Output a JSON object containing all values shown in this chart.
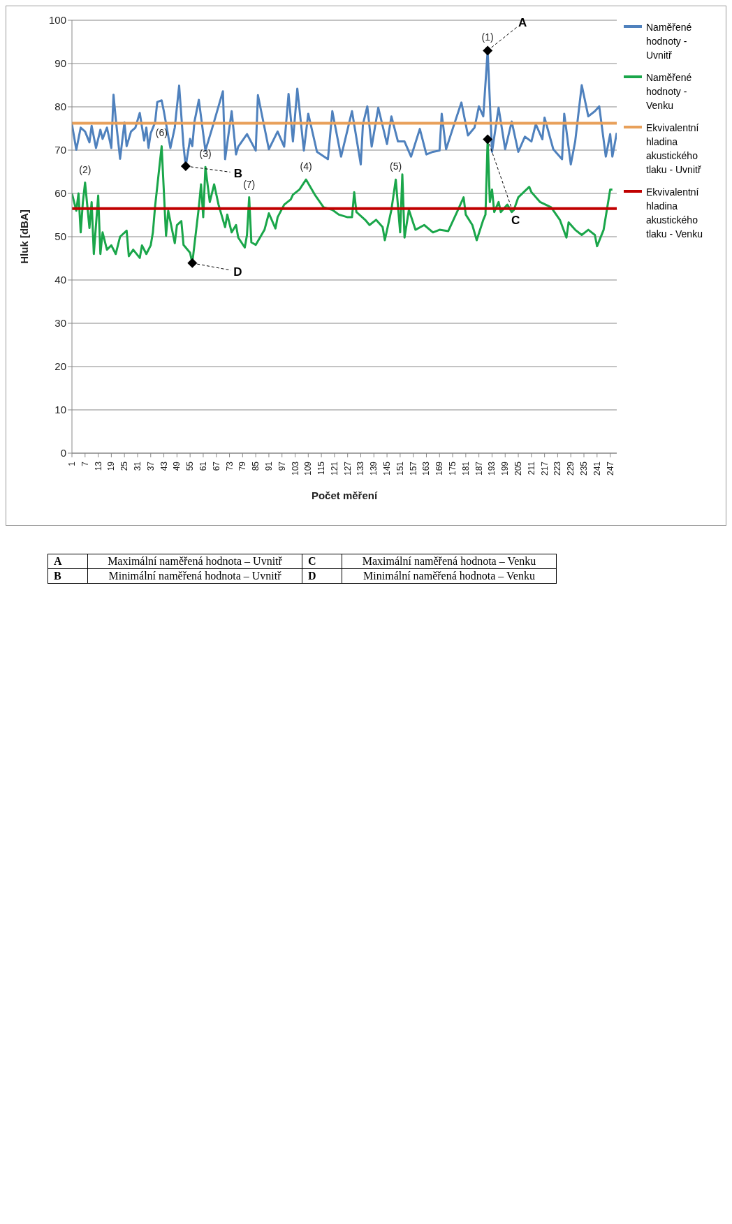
{
  "chart_data": {
    "type": "line",
    "xlabel": "Počet měření",
    "ylabel": "Hluk [dBA]",
    "xlim": [
      1,
      250
    ],
    "xticks": [
      1,
      7,
      13,
      19,
      25,
      31,
      37,
      43,
      49,
      55,
      61,
      67,
      73,
      79,
      85,
      91,
      97,
      103,
      109,
      115,
      121,
      127,
      133,
      139,
      145,
      151,
      157,
      163,
      169,
      175,
      181,
      187,
      193,
      199,
      205,
      211,
      217,
      223,
      229,
      235,
      241,
      247
    ],
    "ylim": [
      0,
      100
    ],
    "yticks": [
      0,
      10,
      20,
      30,
      40,
      50,
      60,
      70,
      80,
      90,
      100
    ],
    "grid": "y",
    "legend": "right",
    "series": [
      {
        "name": "Naměřené hodnoty - Uvnitř",
        "color": "#4f81bd",
        "x": [
          1,
          3,
          5,
          7,
          9,
          10,
          12,
          14,
          15,
          17,
          19,
          20,
          21,
          23,
          25,
          26,
          28,
          30,
          32,
          34,
          35,
          36,
          37,
          39,
          40,
          42,
          43,
          46,
          48,
          50,
          52,
          53,
          55,
          56,
          57,
          59,
          62,
          65,
          70,
          71,
          74,
          76,
          77,
          81,
          85,
          86,
          91,
          95,
          98,
          100,
          102,
          104,
          107,
          109,
          113,
          118,
          120,
          124,
          129,
          133,
          134,
          136,
          138,
          141,
          145,
          147,
          150,
          153,
          156,
          160,
          163,
          166,
          169,
          170,
          172,
          175,
          179,
          182,
          185,
          187,
          189,
          191,
          193,
          196,
          199,
          202,
          205,
          208,
          211,
          213,
          216,
          217,
          221,
          225,
          226,
          229,
          231,
          234,
          237,
          240,
          242,
          245,
          247,
          248,
          250
        ],
        "values": [
          76.0,
          70.1,
          75.2,
          74.3,
          71.8,
          75.6,
          70.5,
          74.7,
          72.6,
          75.2,
          70.5,
          82.8,
          77.3,
          68.0,
          76.4,
          70.9,
          74.3,
          75.2,
          78.6,
          72.2,
          75.2,
          70.5,
          73.9,
          76.4,
          81.1,
          81.5,
          79.0,
          70.5,
          75.2,
          84.9,
          70.9,
          66.3,
          72.6,
          70.9,
          76.6,
          81.6,
          69.9,
          74.9,
          83.6,
          67.9,
          79.0,
          69.0,
          70.8,
          73.7,
          69.9,
          82.7,
          70.2,
          74.3,
          70.8,
          83.0,
          72.0,
          84.2,
          69.9,
          78.4,
          69.6,
          67.9,
          79.0,
          68.5,
          79.0,
          66.7,
          76.0,
          80.1,
          70.8,
          79.8,
          71.4,
          77.8,
          72.0,
          72.0,
          68.5,
          74.9,
          69.0,
          69.6,
          69.9,
          78.4,
          70.2,
          74.9,
          81.0,
          73.4,
          75.2,
          80.1,
          77.8,
          93.0,
          69.6,
          79.8,
          70.2,
          76.6,
          69.6,
          73.1,
          72.0,
          76.0,
          72.5,
          77.5,
          70.2,
          67.9,
          78.4,
          66.7,
          72.0,
          85.0,
          77.8,
          79.0,
          80.1,
          68.5,
          73.7,
          68.5,
          74.0
        ]
      },
      {
        "name": "Naměřené hodnoty - Venku",
        "color": "#1aa64a",
        "x": [
          1,
          3,
          4,
          5,
          6,
          7,
          9,
          10,
          11,
          13,
          14,
          15,
          17,
          19,
          21,
          23,
          26,
          27,
          29,
          32,
          33,
          35,
          37,
          38,
          39,
          42,
          44,
          45,
          48,
          49,
          51,
          52,
          55,
          56,
          59,
          60,
          61,
          62,
          64,
          66,
          68,
          71,
          72,
          74,
          76,
          77,
          80,
          81,
          82,
          83,
          85,
          89,
          91,
          94,
          95,
          98,
          101,
          102,
          105,
          108,
          112,
          116,
          120,
          123,
          127,
          129,
          130,
          131,
          135,
          137,
          140,
          143,
          144,
          147,
          149,
          151,
          152,
          153,
          155,
          158,
          162,
          166,
          169,
          173,
          177,
          180,
          181,
          184,
          186,
          189,
          190,
          191,
          192,
          193,
          194,
          196,
          197,
          200,
          202,
          203,
          205,
          210,
          211,
          215,
          220,
          224,
          227,
          228,
          231,
          234,
          237,
          240,
          241,
          244,
          247,
          248
        ],
        "values": [
          60.0,
          56.0,
          60.0,
          51.0,
          58.0,
          62.5,
          52.0,
          58.0,
          46.0,
          59.5,
          46.0,
          51.0,
          47.0,
          48.0,
          46.0,
          50.0,
          51.4,
          45.5,
          47.0,
          45.1,
          48.0,
          46.0,
          48.0,
          51.0,
          57.0,
          70.9,
          50.2,
          56.0,
          48.5,
          52.7,
          53.6,
          48.1,
          46.3,
          43.9,
          56.8,
          62.1,
          54.5,
          66.1,
          58.0,
          62.1,
          57.4,
          52.2,
          55.1,
          51.0,
          52.7,
          49.8,
          47.5,
          50.4,
          59.1,
          48.7,
          48.1,
          51.6,
          55.4,
          51.9,
          54.5,
          57.4,
          58.6,
          59.7,
          60.9,
          63.2,
          59.7,
          56.8,
          56.2,
          55.1,
          54.5,
          54.5,
          60.3,
          55.7,
          53.9,
          52.7,
          53.9,
          52.2,
          49.2,
          56.2,
          63.2,
          51.0,
          64.4,
          49.8,
          56.2,
          51.6,
          52.7,
          51.0,
          51.6,
          51.3,
          55.7,
          59.1,
          55.1,
          52.7,
          49.2,
          53.9,
          55.1,
          72.5,
          58.0,
          60.9,
          55.7,
          58.0,
          55.7,
          57.4,
          55.7,
          56.2,
          59.1,
          61.5,
          60.3,
          58.0,
          56.8,
          53.9,
          49.8,
          53.3,
          51.6,
          50.4,
          51.6,
          50.4,
          47.8,
          51.6,
          60.9,
          60.9
        ]
      },
      {
        "name": "Ekvivalentní hladina akustického tlaku - Uvnitř",
        "color": "#e8a05a",
        "x": [
          1,
          250
        ],
        "values": [
          76.2,
          76.2
        ]
      },
      {
        "name": "Ekvivalentní hladina akustického tlaku - Venku",
        "color": "#c00000",
        "x": [
          1,
          250
        ],
        "values": [
          56.5,
          56.5
        ]
      }
    ],
    "annotations": [
      {
        "text": "A",
        "x": 191,
        "y": 93.0
      },
      {
        "text": "B",
        "x": 53,
        "y": 66.3
      },
      {
        "text": "C",
        "x": 191,
        "y": 72.5
      },
      {
        "text": "D",
        "x": 56,
        "y": 43.9
      },
      {
        "text": "(1)",
        "x": 191,
        "y": 93.0
      },
      {
        "text": "(2)",
        "x": 7,
        "y": 62.5
      },
      {
        "text": "(3)",
        "x": 62,
        "y": 66.1
      },
      {
        "text": "(4)",
        "x": 108,
        "y": 63.2
      },
      {
        "text": "(5)",
        "x": 149,
        "y": 63.2
      },
      {
        "text": "(6)",
        "x": 42,
        "y": 70.9
      },
      {
        "text": "(7)",
        "x": 82,
        "y": 59.1
      },
      "A",
      "Maximální naměřená hodnota – Uvnitř",
      "C",
      "Maximální naměřená hodnota – Venku",
      "B",
      "Minimální naměřená hodnota – Uvnitř",
      "D",
      "Minimální naměřená hodnota – Venku"
    ]
  }
}
